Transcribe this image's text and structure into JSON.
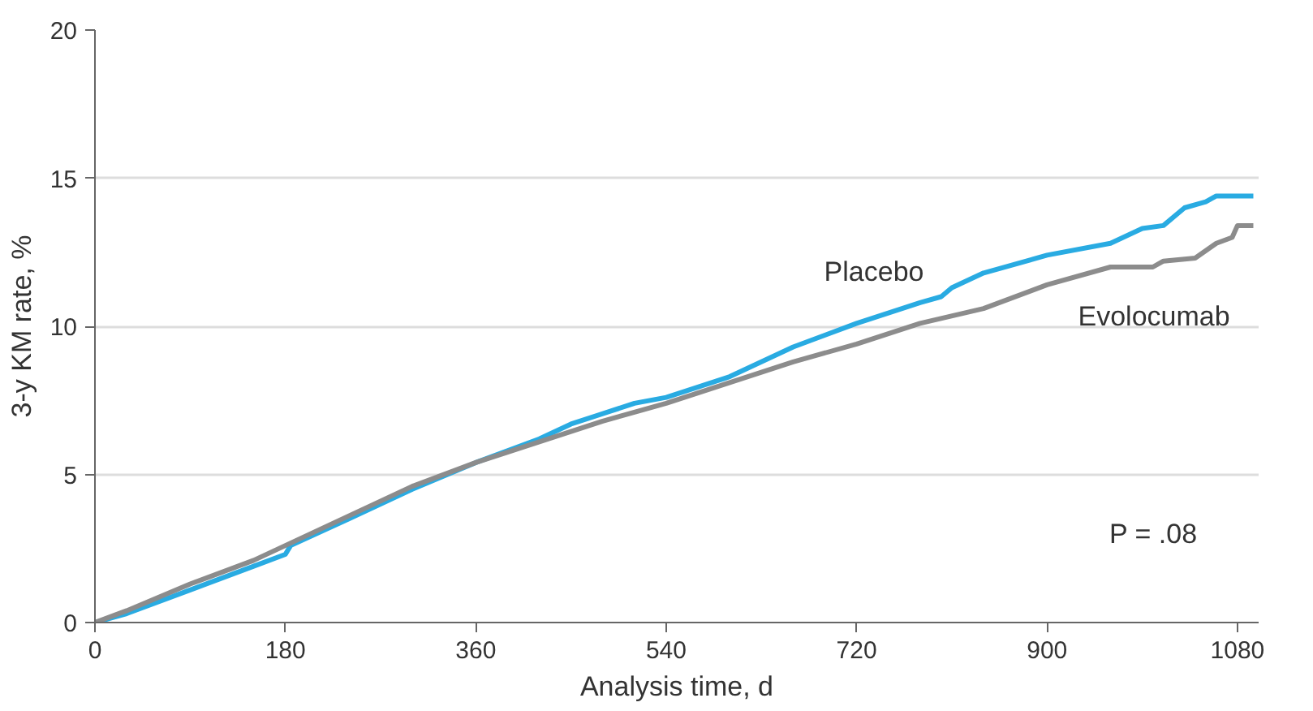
{
  "chart_data": {
    "type": "line",
    "xlabel": "Analysis time, d",
    "ylabel": "3-y KM rate, %",
    "xlim": [
      0,
      1100
    ],
    "ylim": [
      0,
      20
    ],
    "xticks": [
      0,
      180,
      360,
      540,
      720,
      900,
      1080
    ],
    "yticks": [
      0,
      5,
      10,
      15,
      20
    ],
    "grid": "y",
    "line_style": "solid",
    "marker": "none",
    "series": [
      {
        "name": "Placebo",
        "color": "#29abe2",
        "x": [
          0,
          30,
          90,
          150,
          180,
          185,
          240,
          300,
          360,
          420,
          450,
          510,
          540,
          600,
          660,
          720,
          780,
          800,
          810,
          840,
          900,
          960,
          990,
          1010,
          1030,
          1050,
          1060,
          1095
        ],
        "values": [
          0,
          0.3,
          1.1,
          1.9,
          2.3,
          2.6,
          3.5,
          4.5,
          5.4,
          6.2,
          6.7,
          7.4,
          7.6,
          8.3,
          9.3,
          10.1,
          10.8,
          11.0,
          11.3,
          11.8,
          12.4,
          12.8,
          13.3,
          13.4,
          14.0,
          14.2,
          14.4,
          14.4
        ]
      },
      {
        "name": "Evolocumab",
        "color": "#8c8c8c",
        "x": [
          0,
          30,
          90,
          150,
          180,
          240,
          300,
          360,
          420,
          480,
          540,
          600,
          660,
          720,
          780,
          840,
          900,
          960,
          1000,
          1010,
          1040,
          1060,
          1075,
          1080,
          1095
        ],
        "values": [
          0,
          0.4,
          1.3,
          2.1,
          2.6,
          3.6,
          4.6,
          5.4,
          6.1,
          6.8,
          7.4,
          8.1,
          8.8,
          9.4,
          10.1,
          10.6,
          11.4,
          12.0,
          12.0,
          12.2,
          12.3,
          12.8,
          13.0,
          13.4,
          13.4
        ]
      }
    ],
    "annotations": [
      "P = .08"
    ]
  }
}
